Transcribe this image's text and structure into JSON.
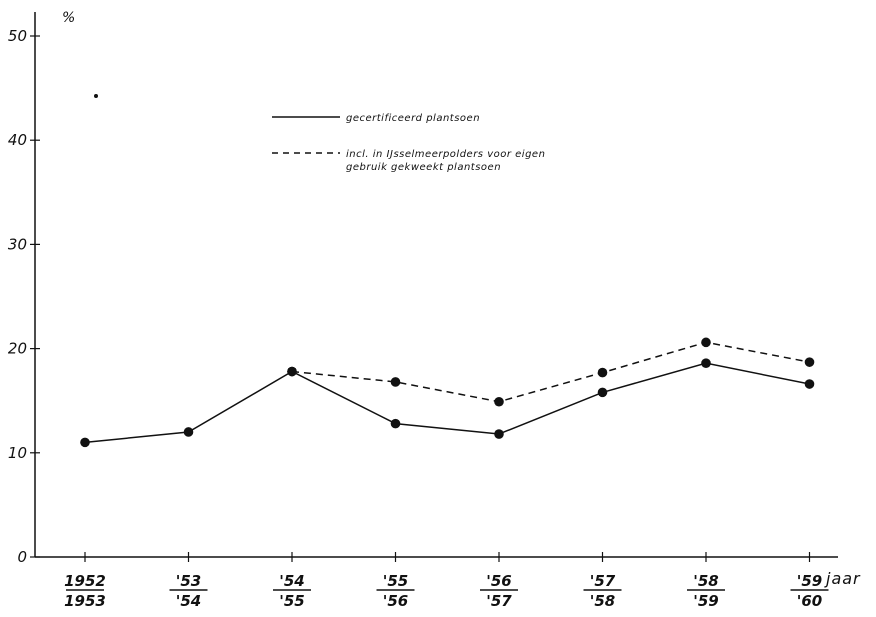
{
  "chart_data": {
    "type": "line",
    "ylabel": "%",
    "xlabel": "jaar",
    "ylim": [
      0,
      50
    ],
    "yticks": [
      "0",
      "10",
      "20",
      "30",
      "40",
      "50"
    ],
    "categories": [
      {
        "top": "1952",
        "bottom": "1953"
      },
      {
        "top": "'53",
        "bottom": "'54"
      },
      {
        "top": "'54",
        "bottom": "'55"
      },
      {
        "top": "'55",
        "bottom": "'56"
      },
      {
        "top": "'56",
        "bottom": "'57"
      },
      {
        "top": "'57",
        "bottom": "'58"
      },
      {
        "top": "'58",
        "bottom": "'59"
      },
      {
        "top": "'59",
        "bottom": "'60"
      }
    ],
    "series": [
      {
        "name": "gecertificeerd plantsoen",
        "style": "solid",
        "values": [
          11,
          12,
          17.8,
          12.8,
          11.8,
          15.8,
          18.6,
          16.6
        ]
      },
      {
        "name": "incl. in IJsselmeerpolders voor eigen gebruik gekweekt plantsoen",
        "style": "dashed",
        "values": [
          null,
          null,
          17.8,
          16.8,
          14.9,
          17.7,
          20.6,
          18.7
        ]
      }
    ],
    "grid": false,
    "legend": "top-center"
  }
}
